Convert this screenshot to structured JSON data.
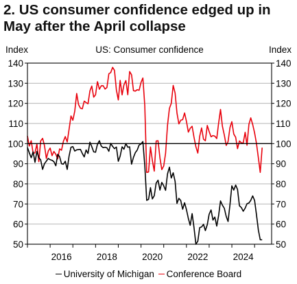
{
  "title": {
    "line1": "2. US consumer confidence edged up in",
    "line2": "May after the April collapse"
  },
  "chart_data": {
    "type": "line",
    "title": "US: Consumer confidence",
    "ylabel_left": "Index",
    "ylabel_right": "Index",
    "ylim": [
      50,
      140
    ],
    "yticks": [
      50,
      60,
      70,
      80,
      90,
      100,
      110,
      120,
      130,
      140
    ],
    "xlim": [
      2015.0,
      2025.75
    ],
    "xticks": [
      2016,
      2018,
      2020,
      2022,
      2024
    ],
    "reference_line": 100,
    "grid": "horizontal",
    "legend_position": "bottom",
    "series": [
      {
        "name": "University of Michigan",
        "color": "#000000",
        "x": [
          2015.0,
          2015.083,
          2015.167,
          2015.25,
          2015.333,
          2015.417,
          2015.5,
          2015.583,
          2015.667,
          2015.75,
          2015.833,
          2015.917,
          2016.0,
          2016.083,
          2016.167,
          2016.25,
          2016.333,
          2016.417,
          2016.5,
          2016.583,
          2016.667,
          2016.75,
          2016.833,
          2016.917,
          2017.0,
          2017.083,
          2017.167,
          2017.25,
          2017.333,
          2017.417,
          2017.5,
          2017.583,
          2017.667,
          2017.75,
          2017.833,
          2017.917,
          2018.0,
          2018.083,
          2018.167,
          2018.25,
          2018.333,
          2018.417,
          2018.5,
          2018.583,
          2018.667,
          2018.75,
          2018.833,
          2018.917,
          2019.0,
          2019.083,
          2019.167,
          2019.25,
          2019.333,
          2019.417,
          2019.5,
          2019.583,
          2019.667,
          2019.75,
          2019.833,
          2019.917,
          2020.0,
          2020.083,
          2020.167,
          2020.25,
          2020.333,
          2020.417,
          2020.5,
          2020.583,
          2020.667,
          2020.75,
          2020.833,
          2020.917,
          2021.0,
          2021.083,
          2021.167,
          2021.25,
          2021.333,
          2021.417,
          2021.5,
          2021.583,
          2021.667,
          2021.75,
          2021.833,
          2021.917,
          2022.0,
          2022.083,
          2022.167,
          2022.25,
          2022.333,
          2022.417,
          2022.5,
          2022.583,
          2022.667,
          2022.75,
          2022.833,
          2022.917,
          2023.0,
          2023.083,
          2023.167,
          2023.25,
          2023.333,
          2023.417,
          2023.5,
          2023.583,
          2023.667,
          2023.75,
          2023.833,
          2023.917,
          2024.0,
          2024.083,
          2024.167,
          2024.25,
          2024.333,
          2024.417,
          2024.5,
          2024.583,
          2024.667,
          2024.75,
          2024.833,
          2024.917,
          2025.0,
          2025.083,
          2025.167,
          2025.25,
          2025.333
        ],
        "values": [
          98.1,
          95.4,
          93.0,
          95.9,
          90.7,
          96.1,
          93.1,
          91.9,
          87.2,
          90.0,
          91.3,
          92.6,
          92.0,
          91.7,
          91.0,
          89.0,
          94.7,
          93.5,
          90.0,
          89.8,
          91.2,
          87.2,
          93.8,
          98.2,
          98.5,
          96.3,
          96.9,
          97.0,
          97.1,
          95.1,
          93.4,
          96.8,
          95.1,
          100.7,
          98.5,
          95.9,
          95.7,
          99.7,
          101.4,
          98.8,
          98.0,
          98.2,
          97.9,
          96.2,
          100.1,
          98.6,
          97.5,
          98.3,
          91.2,
          93.8,
          98.4,
          97.2,
          100.0,
          98.2,
          98.4,
          89.8,
          93.2,
          95.5,
          96.8,
          99.3,
          99.8,
          101.0,
          89.1,
          71.8,
          72.3,
          78.1,
          72.5,
          74.1,
          80.4,
          81.8,
          76.9,
          80.7,
          79.0,
          76.8,
          84.9,
          88.3,
          82.9,
          85.5,
          81.2,
          70.3,
          72.8,
          71.7,
          67.4,
          70.6,
          67.2,
          62.8,
          59.4,
          65.2,
          58.4,
          50.0,
          51.5,
          58.2,
          58.6,
          59.9,
          56.8,
          59.7,
          64.9,
          67.0,
          62.0,
          63.5,
          59.0,
          64.2,
          71.5,
          69.4,
          67.9,
          63.8,
          61.3,
          69.7,
          79.0,
          76.9,
          79.4,
          77.2,
          69.1,
          68.2,
          66.4,
          67.9,
          70.1,
          70.5,
          71.8,
          74.0,
          71.7,
          64.7,
          57.0,
          52.2,
          52.2
        ]
      },
      {
        "name": "Conference Board",
        "color": "#e8000b",
        "x": [
          2015.0,
          2015.083,
          2015.167,
          2015.25,
          2015.333,
          2015.417,
          2015.5,
          2015.583,
          2015.667,
          2015.75,
          2015.833,
          2015.917,
          2016.0,
          2016.083,
          2016.167,
          2016.25,
          2016.333,
          2016.417,
          2016.5,
          2016.583,
          2016.667,
          2016.75,
          2016.833,
          2016.917,
          2017.0,
          2017.083,
          2017.167,
          2017.25,
          2017.333,
          2017.417,
          2017.5,
          2017.583,
          2017.667,
          2017.75,
          2017.833,
          2017.917,
          2018.0,
          2018.083,
          2018.167,
          2018.25,
          2018.333,
          2018.417,
          2018.5,
          2018.583,
          2018.667,
          2018.75,
          2018.833,
          2018.917,
          2019.0,
          2019.083,
          2019.167,
          2019.25,
          2019.333,
          2019.417,
          2019.5,
          2019.583,
          2019.667,
          2019.75,
          2019.833,
          2019.917,
          2020.0,
          2020.083,
          2020.167,
          2020.25,
          2020.333,
          2020.417,
          2020.5,
          2020.583,
          2020.667,
          2020.75,
          2020.833,
          2020.917,
          2021.0,
          2021.083,
          2021.167,
          2021.25,
          2021.333,
          2021.417,
          2021.5,
          2021.583,
          2021.667,
          2021.75,
          2021.833,
          2021.917,
          2022.0,
          2022.083,
          2022.167,
          2022.25,
          2022.333,
          2022.417,
          2022.5,
          2022.583,
          2022.667,
          2022.75,
          2022.833,
          2022.917,
          2023.0,
          2023.083,
          2023.167,
          2023.25,
          2023.333,
          2023.417,
          2023.5,
          2023.583,
          2023.667,
          2023.75,
          2023.833,
          2023.917,
          2024.0,
          2024.083,
          2024.167,
          2024.25,
          2024.333,
          2024.417,
          2024.5,
          2024.583,
          2024.667,
          2024.75,
          2024.833,
          2024.917,
          2025.0,
          2025.083,
          2025.167,
          2025.25,
          2025.333
        ],
        "values": [
          103.8,
          98.8,
          101.4,
          95.2,
          95.4,
          99.8,
          91.0,
          101.3,
          102.6,
          99.1,
          92.6,
          96.3,
          97.8,
          94.0,
          96.1,
          94.7,
          92.4,
          97.4,
          96.7,
          101.1,
          103.5,
          100.8,
          107.1,
          113.7,
          111.6,
          116.1,
          124.9,
          119.4,
          117.6,
          117.3,
          121.1,
          120.4,
          119.8,
          126.2,
          128.6,
          123.1,
          124.3,
          130.8,
          127.0,
          128.7,
          128.8,
          127.1,
          127.9,
          134.7,
          135.3,
          137.9,
          136.4,
          126.6,
          121.7,
          131.4,
          124.2,
          129.2,
          131.3,
          124.3,
          135.8,
          134.2,
          126.3,
          126.1,
          126.8,
          126.5,
          130.4,
          132.6,
          118.8,
          85.7,
          85.9,
          98.3,
          91.7,
          86.3,
          101.3,
          101.4,
          92.9,
          87.1,
          88.9,
          95.2,
          109.0,
          117.5,
          120.0,
          128.9,
          125.1,
          115.2,
          109.8,
          111.6,
          111.9,
          115.2,
          111.1,
          105.7,
          107.6,
          108.6,
          103.2,
          98.4,
          95.3,
          103.6,
          107.8,
          102.2,
          101.4,
          109.0,
          106.0,
          103.4,
          104.0,
          103.7,
          102.5,
          110.1,
          117.0,
          108.7,
          104.3,
          99.1,
          101.0,
          108.0,
          110.9,
          104.8,
          103.1,
          97.5,
          101.3,
          100.4,
          100.3,
          105.6,
          99.2,
          109.6,
          112.8,
          109.5,
          105.3,
          100.1,
          92.9,
          85.7,
          98.0
        ]
      }
    ]
  }
}
